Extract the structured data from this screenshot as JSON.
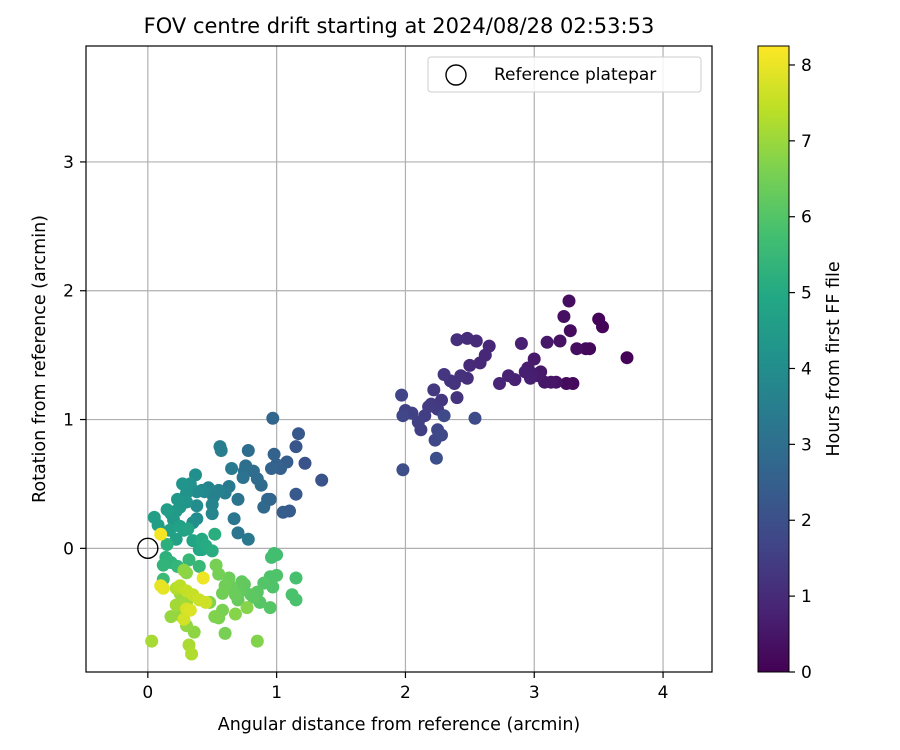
{
  "chart_data": {
    "type": "scatter",
    "title": "FOV centre drift starting at 2024/08/28 02:53:53",
    "xlabel": "Angular distance from reference (arcmin)",
    "ylabel": "Rotation from reference (arcmin)",
    "xlim": [
      -0.48,
      4.38
    ],
    "ylim": [
      -0.96,
      3.9
    ],
    "xticks": [
      0,
      1,
      2,
      3,
      4
    ],
    "yticks": [
      0,
      1,
      2,
      3
    ],
    "grid": true,
    "legend": {
      "position": "top-right",
      "label": "Reference platepar"
    },
    "reference_point": {
      "x": 0,
      "y": 0
    },
    "colorbar": {
      "label": "Hours from first FF file",
      "colormap": "viridis",
      "range": [
        0,
        8.25
      ],
      "ticks": [
        0,
        1,
        2,
        3,
        4,
        5,
        6,
        7,
        8
      ]
    },
    "points": [
      [
        3.72,
        1.48,
        0.05
      ],
      [
        3.53,
        1.72,
        0.08
      ],
      [
        3.5,
        1.78,
        0.1
      ],
      [
        3.43,
        1.55,
        0.15
      ],
      [
        3.4,
        1.55,
        0.2
      ],
      [
        3.3,
        1.28,
        0.2
      ],
      [
        3.25,
        1.28,
        0.25
      ],
      [
        3.28,
        1.69,
        0.25
      ],
      [
        3.33,
        1.55,
        0.3
      ],
      [
        3.27,
        1.92,
        0.3
      ],
      [
        3.23,
        1.8,
        0.35
      ],
      [
        3.2,
        1.61,
        0.4
      ],
      [
        3.17,
        1.29,
        0.4
      ],
      [
        3.13,
        1.29,
        0.5
      ],
      [
        3.08,
        1.29,
        0.5
      ],
      [
        3.05,
        1.37,
        0.55
      ],
      [
        3.1,
        1.6,
        0.55
      ],
      [
        3.03,
        1.34,
        0.6
      ],
      [
        3.0,
        1.47,
        0.6
      ],
      [
        2.98,
        1.36,
        0.65
      ],
      [
        2.95,
        1.4,
        0.65
      ],
      [
        2.93,
        1.37,
        0.7
      ],
      [
        2.97,
        1.32,
        0.7
      ],
      [
        2.9,
        1.59,
        0.75
      ],
      [
        2.85,
        1.31,
        0.75
      ],
      [
        2.8,
        1.34,
        0.8
      ],
      [
        2.73,
        1.28,
        0.85
      ],
      [
        2.65,
        1.57,
        0.9
      ],
      [
        2.62,
        1.5,
        0.9
      ],
      [
        2.58,
        1.44,
        0.95
      ],
      [
        2.55,
        1.61,
        1.0
      ],
      [
        2.5,
        1.42,
        1.0
      ],
      [
        2.48,
        1.63,
        1.05
      ],
      [
        2.48,
        1.32,
        1.1
      ],
      [
        2.4,
        1.62,
        1.1
      ],
      [
        2.43,
        1.34,
        1.15
      ],
      [
        2.38,
        1.28,
        1.2
      ],
      [
        2.4,
        1.17,
        1.2
      ],
      [
        2.35,
        1.3,
        1.25
      ],
      [
        2.3,
        1.35,
        1.3
      ],
      [
        2.28,
        1.15,
        1.3
      ],
      [
        2.22,
        1.23,
        1.35
      ],
      [
        2.25,
        1.08,
        1.4
      ],
      [
        2.2,
        1.12,
        1.4
      ],
      [
        2.18,
        1.1,
        1.45
      ],
      [
        2.15,
        1.03,
        1.5
      ],
      [
        2.12,
        0.92,
        1.5
      ],
      [
        2.1,
        0.98,
        1.55
      ],
      [
        2.05,
        1.05,
        1.6
      ],
      [
        2.0,
        1.07,
        1.6
      ],
      [
        1.97,
        1.19,
        1.65
      ],
      [
        1.98,
        1.03,
        1.7
      ],
      [
        2.23,
        0.84,
        1.75
      ],
      [
        2.25,
        0.92,
        1.75
      ],
      [
        2.28,
        0.88,
        1.8
      ],
      [
        2.3,
        1.03,
        1.85
      ],
      [
        2.54,
        1.01,
        1.9
      ],
      [
        1.98,
        0.61,
        1.95
      ],
      [
        2.24,
        0.7,
        2.0
      ],
      [
        1.35,
        0.53,
        2.1
      ],
      [
        1.22,
        0.66,
        2.15
      ],
      [
        1.15,
        0.79,
        2.2
      ],
      [
        1.17,
        0.89,
        2.25
      ],
      [
        1.15,
        0.42,
        2.3
      ],
      [
        1.1,
        0.29,
        2.35
      ],
      [
        1.05,
        0.28,
        2.4
      ],
      [
        1.08,
        0.67,
        2.45
      ],
      [
        1.03,
        0.62,
        2.5
      ],
      [
        1.0,
        0.65,
        2.55
      ],
      [
        0.98,
        0.73,
        2.6
      ],
      [
        0.96,
        0.62,
        2.65
      ],
      [
        0.97,
        1.01,
        2.7
      ],
      [
        0.95,
        0.38,
        2.7
      ],
      [
        0.93,
        0.38,
        2.75
      ],
      [
        0.9,
        0.32,
        2.8
      ],
      [
        0.88,
        0.49,
        2.85
      ],
      [
        0.85,
        0.54,
        2.9
      ],
      [
        0.82,
        0.6,
        2.9
      ],
      [
        0.78,
        0.76,
        2.95
      ],
      [
        0.76,
        0.64,
        3.0
      ],
      [
        0.75,
        0.6,
        3.05
      ],
      [
        0.74,
        0.55,
        3.1
      ],
      [
        0.7,
        0.38,
        3.15
      ],
      [
        0.7,
        0.12,
        3.2
      ],
      [
        0.67,
        0.23,
        3.25
      ],
      [
        0.78,
        0.07,
        3.3
      ],
      [
        0.63,
        0.48,
        3.35
      ],
      [
        0.65,
        0.62,
        3.35
      ],
      [
        0.6,
        0.43,
        3.4
      ],
      [
        0.57,
        0.76,
        3.45
      ],
      [
        0.56,
        0.79,
        3.5
      ],
      [
        0.55,
        0.45,
        3.55
      ],
      [
        0.51,
        0.4,
        3.6
      ],
      [
        0.47,
        0.47,
        3.65
      ],
      [
        0.5,
        0.34,
        3.7
      ],
      [
        0.5,
        0.27,
        3.75
      ],
      [
        0.44,
        0.44,
        3.8
      ],
      [
        0.42,
        0.45,
        3.85
      ],
      [
        0.38,
        0.44,
        3.9
      ],
      [
        0.38,
        0.33,
        3.95
      ],
      [
        0.38,
        0.23,
        4.0
      ],
      [
        0.35,
        0.2,
        4.05
      ],
      [
        0.37,
        0.57,
        4.1
      ],
      [
        0.33,
        0.5,
        4.15
      ],
      [
        0.3,
        0.43,
        4.2
      ],
      [
        0.27,
        0.5,
        4.25
      ],
      [
        0.3,
        0.36,
        4.25
      ],
      [
        0.25,
        0.32,
        4.3
      ],
      [
        0.23,
        0.38,
        4.35
      ],
      [
        0.22,
        0.29,
        4.4
      ],
      [
        0.2,
        0.22,
        4.45
      ],
      [
        0.18,
        0.27,
        4.5
      ],
      [
        0.15,
        0.3,
        4.55
      ],
      [
        0.05,
        0.24,
        4.6
      ],
      [
        0.08,
        0.18,
        4.6
      ],
      [
        0.17,
        0.14,
        4.65
      ],
      [
        0.22,
        0.07,
        4.7
      ],
      [
        0.25,
        0.17,
        4.7
      ],
      [
        0.28,
        0.14,
        4.75
      ],
      [
        0.31,
        0.15,
        4.8
      ],
      [
        0.35,
        0.06,
        4.85
      ],
      [
        0.4,
        -0.01,
        4.9
      ],
      [
        0.42,
        -0.01,
        4.95
      ],
      [
        0.42,
        0.07,
        5.0
      ],
      [
        0.45,
        0.02,
        5.05
      ],
      [
        0.5,
        -0.02,
        5.1
      ],
      [
        0.52,
        0.11,
        5.15
      ],
      [
        0.15,
        0.03,
        5.2
      ],
      [
        0.14,
        -0.07,
        5.25
      ],
      [
        0.18,
        -0.11,
        5.3
      ],
      [
        0.12,
        -0.13,
        5.35
      ],
      [
        0.23,
        -0.14,
        5.4
      ],
      [
        0.32,
        -0.09,
        5.45
      ],
      [
        0.4,
        -0.14,
        5.5
      ],
      [
        0.12,
        -0.24,
        5.55
      ],
      [
        0.98,
        -0.04,
        5.7
      ],
      [
        0.96,
        -0.07,
        5.75
      ],
      [
        1.0,
        -0.05,
        5.75
      ],
      [
        1.15,
        -0.23,
        5.8
      ],
      [
        1.15,
        -0.4,
        5.85
      ],
      [
        1.12,
        -0.36,
        5.85
      ],
      [
        0.95,
        -0.22,
        5.9
      ],
      [
        1.0,
        -0.21,
        5.95
      ],
      [
        0.97,
        -0.3,
        5.95
      ],
      [
        0.9,
        -0.27,
        6.0
      ],
      [
        0.95,
        -0.46,
        6.05
      ],
      [
        0.87,
        -0.42,
        6.05
      ],
      [
        0.85,
        -0.34,
        6.1
      ],
      [
        0.82,
        -0.38,
        6.15
      ],
      [
        0.8,
        -0.36,
        6.15
      ],
      [
        0.75,
        -0.28,
        6.2
      ],
      [
        0.73,
        -0.26,
        6.25
      ],
      [
        0.72,
        -0.33,
        6.25
      ],
      [
        0.7,
        -0.4,
        6.3
      ],
      [
        0.68,
        -0.36,
        6.35
      ],
      [
        0.65,
        -0.3,
        6.35
      ],
      [
        0.63,
        -0.23,
        6.4
      ],
      [
        0.6,
        -0.29,
        6.45
      ],
      [
        0.58,
        -0.35,
        6.45
      ],
      [
        0.55,
        -0.2,
        6.5
      ],
      [
        0.53,
        -0.13,
        6.55
      ],
      [
        0.6,
        -0.66,
        6.55
      ],
      [
        0.58,
        -0.48,
        6.6
      ],
      [
        0.55,
        -0.54,
        6.6
      ],
      [
        0.52,
        -0.53,
        6.65
      ],
      [
        0.48,
        -0.42,
        6.7
      ],
      [
        0.85,
        -0.72,
        6.7
      ],
      [
        0.77,
        -0.46,
        6.75
      ],
      [
        0.68,
        -0.51,
        6.75
      ],
      [
        0.3,
        -0.19,
        6.8
      ],
      [
        0.28,
        -0.17,
        6.85
      ],
      [
        0.36,
        -0.65,
        6.85
      ],
      [
        0.3,
        -0.6,
        6.9
      ],
      [
        0.25,
        -0.52,
        6.9
      ],
      [
        0.18,
        -0.53,
        6.95
      ],
      [
        0.25,
        -0.35,
        7.0
      ],
      [
        0.3,
        -0.42,
        7.05
      ],
      [
        0.22,
        -0.44,
        7.1
      ],
      [
        0.03,
        -0.72,
        7.15
      ],
      [
        0.32,
        -0.75,
        7.2
      ],
      [
        0.34,
        -0.82,
        7.25
      ],
      [
        0.22,
        -0.31,
        7.3
      ],
      [
        0.25,
        -0.29,
        7.4
      ],
      [
        0.3,
        -0.33,
        7.5
      ],
      [
        0.35,
        -0.36,
        7.55
      ],
      [
        0.4,
        -0.4,
        7.6
      ],
      [
        0.45,
        -0.42,
        7.65
      ],
      [
        0.28,
        -0.55,
        7.7
      ],
      [
        0.3,
        -0.47,
        7.75
      ],
      [
        0.33,
        -0.48,
        7.8
      ],
      [
        0.12,
        -0.31,
        7.9
      ],
      [
        0.1,
        -0.29,
        7.95
      ],
      [
        0.43,
        -0.23,
        8.05
      ],
      [
        0.1,
        0.11,
        8.15
      ]
    ]
  }
}
